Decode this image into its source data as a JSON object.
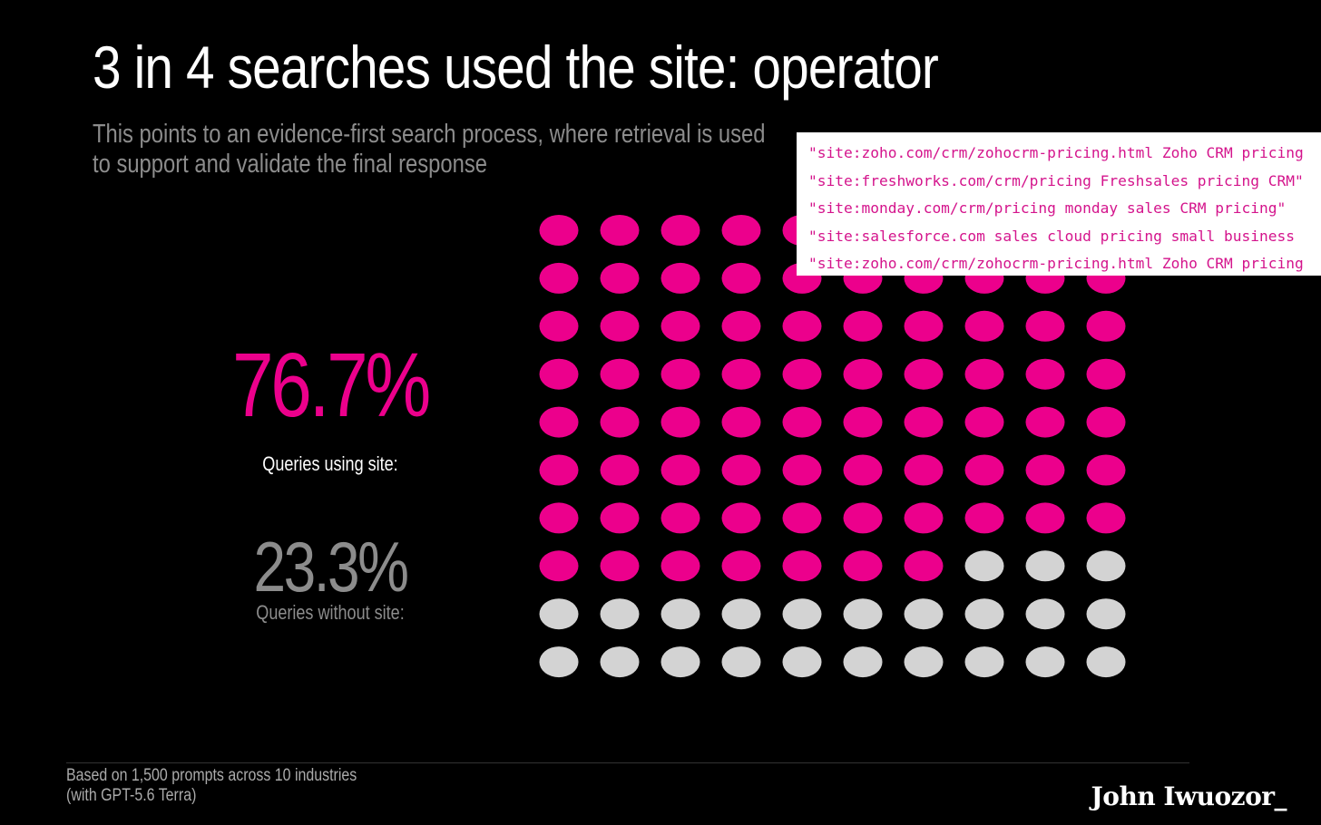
{
  "header": {
    "title": "3 in 4 searches used the site: operator",
    "subtitle": "This points to an evidence-first search process, where retrieval is used to support and validate the final response"
  },
  "stats": {
    "using_pct": "76.7%",
    "using_label": "Queries using site:",
    "without_pct": "23.3%",
    "without_label": "Queries without site:"
  },
  "queries": [
    "\"site:zoho.com/crm/zohocrm-pricing.html Zoho CRM pricing",
    "\"site:freshworks.com/crm/pricing Freshsales pricing CRM\"",
    "\"site:monday.com/crm/pricing monday sales CRM pricing\"",
    "\"site:salesforce.com sales cloud pricing small business",
    "\"site:zoho.com/crm/zohocrm-pricing.html Zoho CRM pricing"
  ],
  "footer": {
    "note_line1": "Based on 1,500 prompts across 10 industries",
    "note_line2": "(with GPT-5.6 Terra)",
    "author": "John Iwuozor_"
  },
  "colors": {
    "accent": "#ec008c",
    "muted_dot": "#d3d3d3",
    "background": "#000000"
  },
  "chart_data": {
    "type": "waffle",
    "rows": 10,
    "cols": 10,
    "series": [
      {
        "name": "Queries using site:",
        "value": 76.7
      },
      {
        "name": "Queries without site:",
        "value": 23.3
      }
    ]
  }
}
